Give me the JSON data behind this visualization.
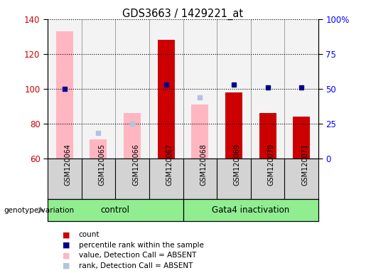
{
  "title": "GDS3663 / 1429221_at",
  "samples": [
    "GSM120064",
    "GSM120065",
    "GSM120066",
    "GSM120067",
    "GSM120068",
    "GSM120069",
    "GSM120070",
    "GSM120071"
  ],
  "count": [
    null,
    null,
    null,
    128,
    null,
    98,
    86,
    84
  ],
  "percentile_rank_pct": [
    50,
    null,
    null,
    53,
    null,
    53,
    51,
    51
  ],
  "value_absent": [
    133,
    71,
    86,
    null,
    91,
    null,
    null,
    null
  ],
  "rank_absent_pct": [
    null,
    18,
    25,
    null,
    44,
    null,
    null,
    null
  ],
  "ylim_left": [
    60,
    140
  ],
  "ylim_right": [
    0,
    100
  ],
  "yticks_left": [
    60,
    80,
    100,
    120,
    140
  ],
  "yticks_right": [
    0,
    25,
    50,
    75,
    100
  ],
  "ytick_labels_right": [
    "0",
    "25",
    "50",
    "75",
    "100%"
  ],
  "count_color": "#CC0000",
  "percentile_color": "#00008B",
  "value_absent_color": "#FFB6C1",
  "rank_absent_color": "#B0C4DE",
  "label_color_left": "#CC0000",
  "label_color_right": "#0000FF",
  "group1_label": "control",
  "group2_label": "Gata4 inactivation",
  "group_color": "#90EE90",
  "genotype_label": "genotype/variation"
}
